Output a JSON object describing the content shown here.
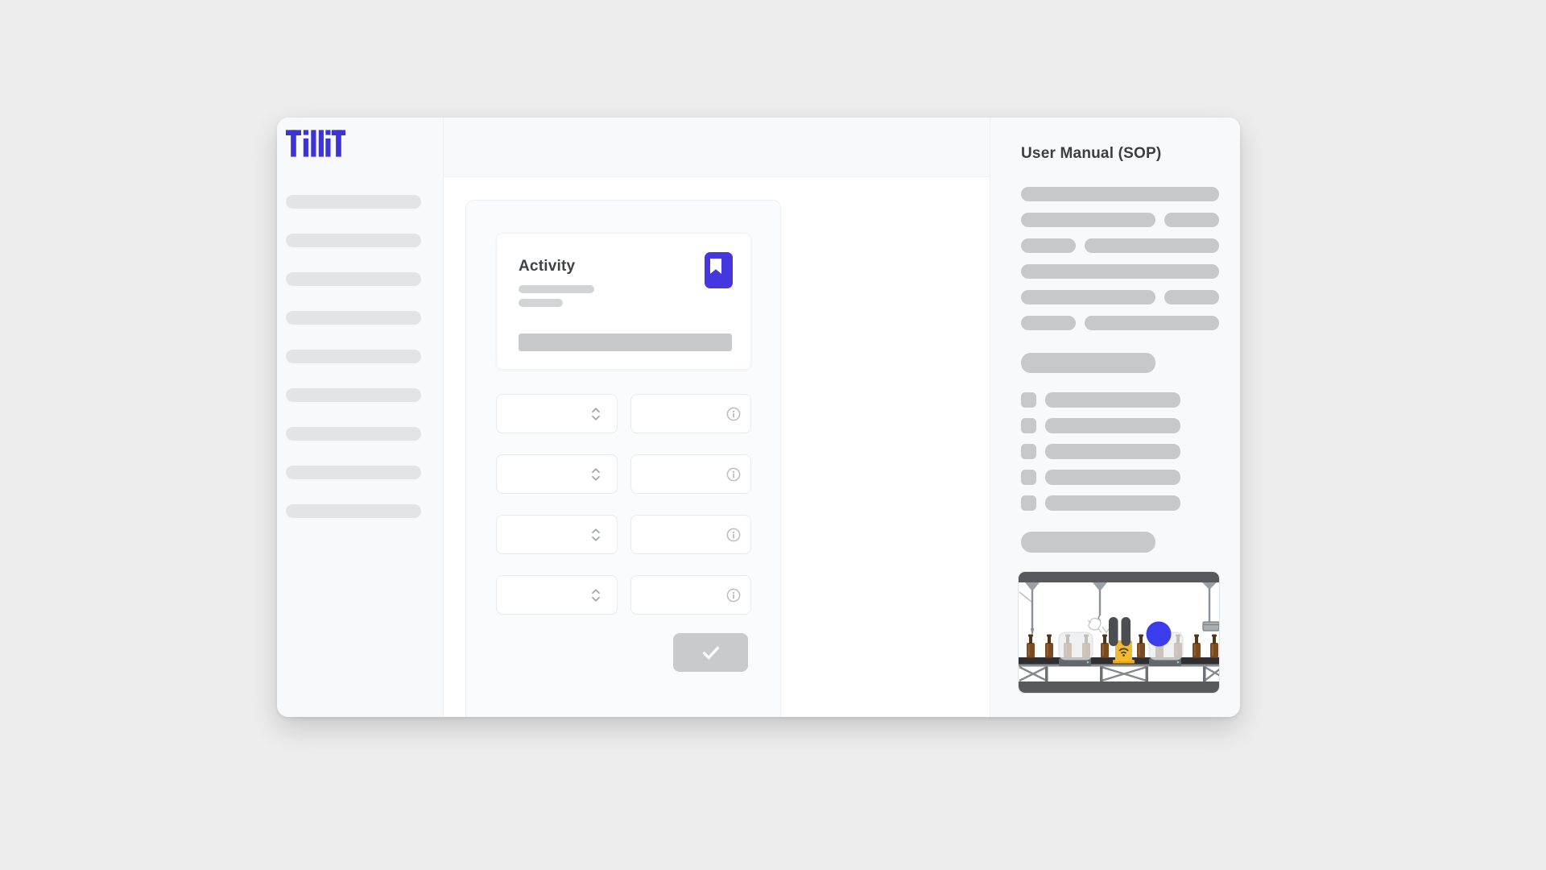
{
  "app": {
    "name": "TilliT",
    "logo_color": "#3c34d6"
  },
  "sidebar": {
    "skeleton_bar_count": 9
  },
  "main": {
    "activity_card": {
      "title": "Activity",
      "bookmark_icon": "bookmark",
      "accent_color": "#4437e0",
      "subtitle_bar_widths": [
        94,
        55
      ],
      "body_bar_width": 265
    },
    "form": {
      "row_count": 4,
      "left_field_icon": "chevron-up-down",
      "right_field_icon": "info-circle"
    },
    "submit": {
      "icon": "check",
      "state": "disabled",
      "button_color": "#c9cacc"
    }
  },
  "manual_panel": {
    "title": "User Manual (SOP)",
    "paragraph_pattern": [
      [
        "full"
      ],
      [
        "wide",
        "short"
      ],
      [
        "short",
        "wide"
      ],
      [
        "full"
      ],
      [
        "wide",
        "short"
      ],
      [
        "short",
        "wide"
      ]
    ],
    "checklist_item_count": 5,
    "illustration": {
      "scene": "bottling-line-conveyor",
      "bottle_positions": [
        15,
        38,
        61,
        84,
        107,
        152,
        175,
        198,
        221,
        243
      ],
      "bottle_color": "#7b4a22",
      "highlight_circle_color": "#3b3cec",
      "sensor_color": "#f5b82e",
      "frame_color": "#58595d"
    }
  }
}
